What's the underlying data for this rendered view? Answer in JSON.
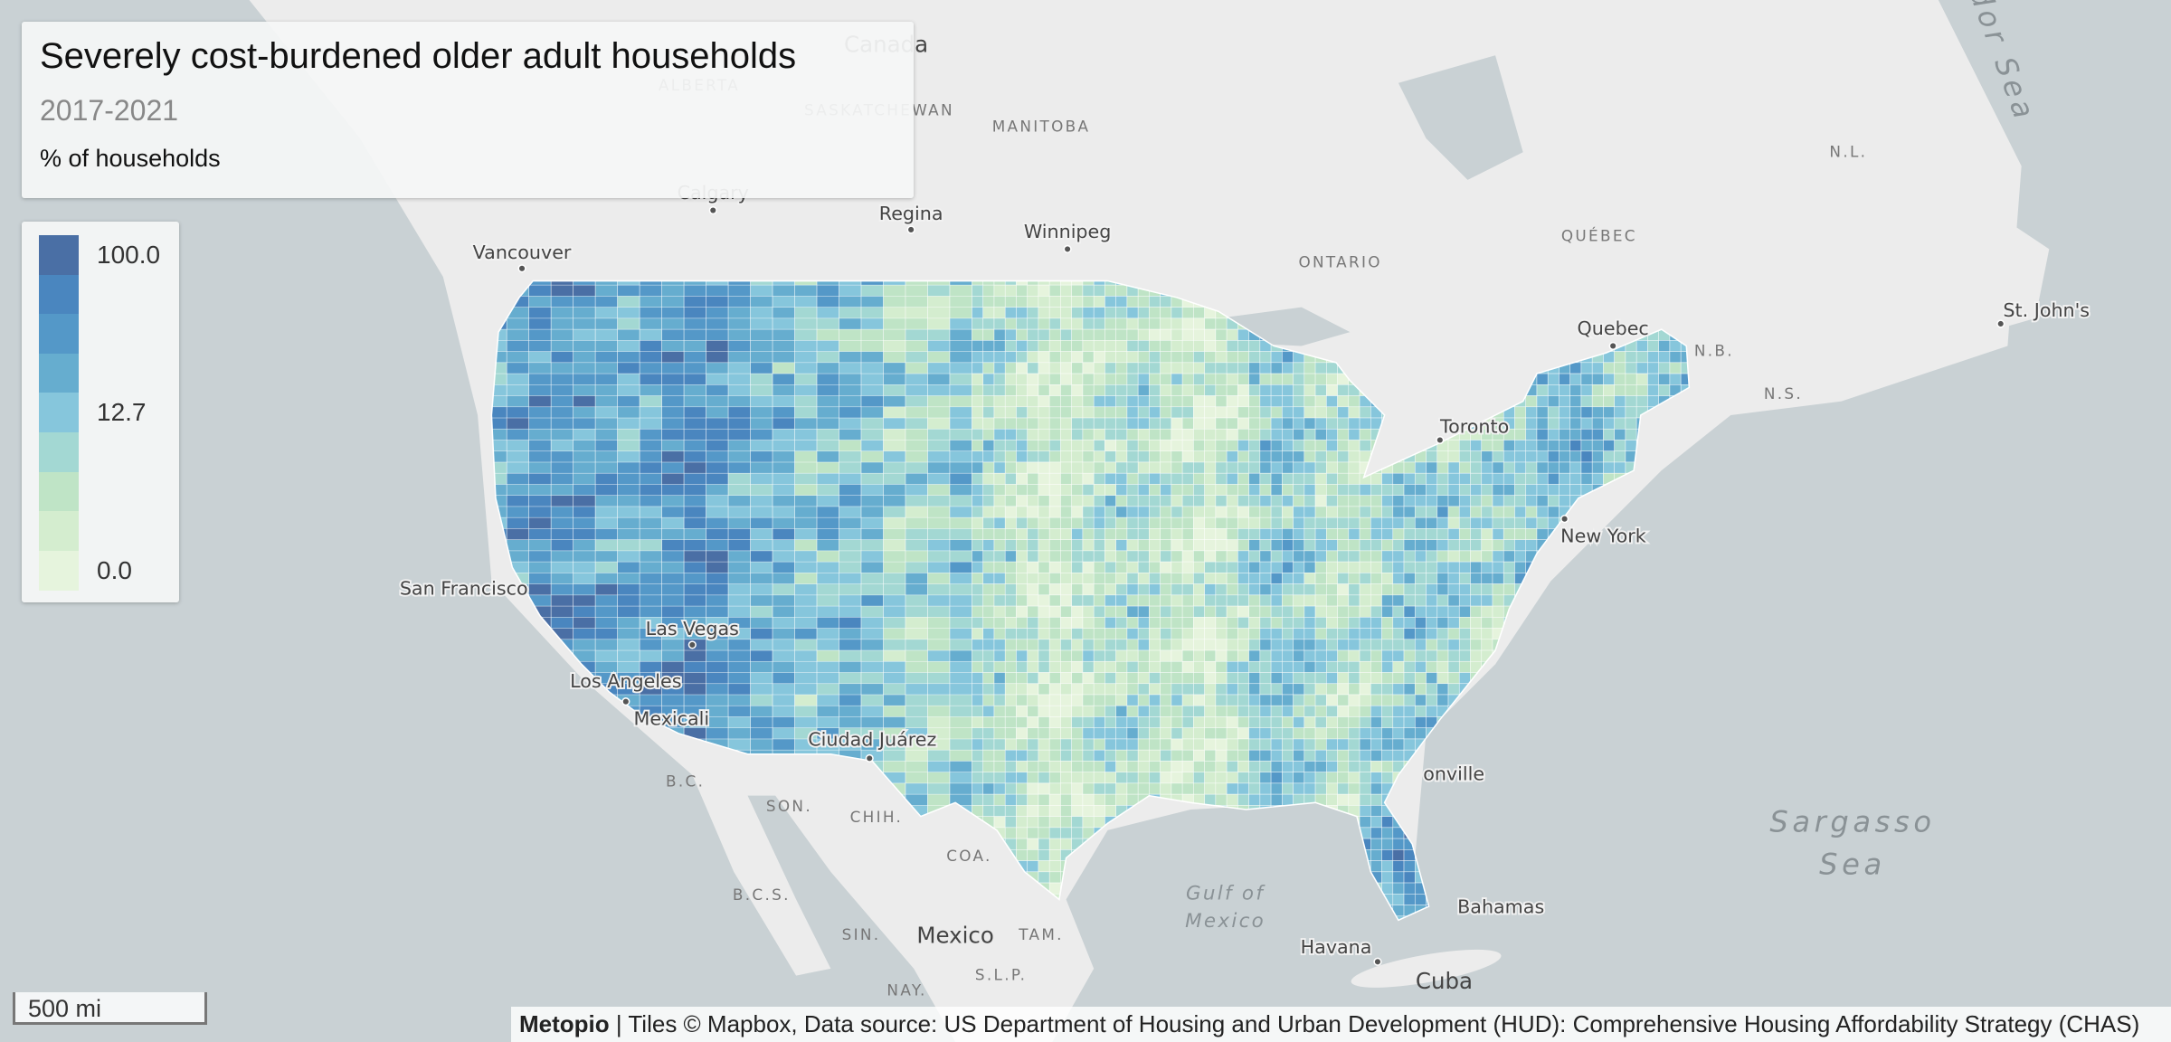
{
  "header": {
    "title": "Severely cost-burdened older adult households",
    "subtitle": "2017-2021",
    "unit": "% of households"
  },
  "legend": {
    "colors": [
      "#4a6fa5",
      "#4a86bf",
      "#5498c8",
      "#66adcf",
      "#86c6dc",
      "#a3d8d3",
      "#bfe4c6",
      "#d4edcf",
      "#e6f4dd"
    ],
    "labels": [
      "100.0",
      "12.7",
      "0.0"
    ]
  },
  "places": [
    "Canada",
    "ALBERTA",
    "SASKATCHEWAN",
    "MANITOBA",
    "ONTARIO",
    "QUÉBEC",
    "N.L.",
    "N.B.",
    "N.S.",
    "Vancouver",
    "Calgary",
    "Regina",
    "Winnipeg",
    "Quebec",
    "St. John's",
    "Toronto",
    "New York",
    "San Francisco",
    "Las Vegas",
    "Los Angeles",
    "Mexicali",
    "Ciudad Juárez",
    "onville",
    "B.C.",
    "SON.",
    "CHIH.",
    "COA.",
    "B.C.S.",
    "SIN.",
    "Mexico",
    "TAM.",
    "S.L.P.",
    "NAY.",
    "Gulf of",
    "Mexico",
    "Bahamas",
    "Havana",
    "Cuba",
    "Sargasso",
    "Sea",
    "dor Sea"
  ],
  "scale": "500 mi",
  "attribution": {
    "brand": "Metopio",
    "text": " | Tiles © Mapbox, Data source: US Department of Housing and Urban Development (HUD): Comprehensive Housing Affordability Strategy (CHAS)"
  }
}
